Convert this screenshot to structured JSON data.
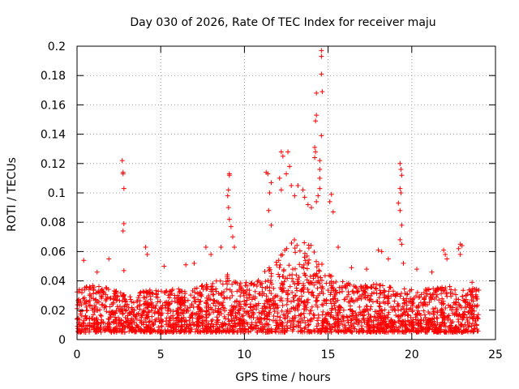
{
  "chart_data": {
    "type": "scatter",
    "title": "Day 030 of 2026, Rate Of TEC Index for receiver maju",
    "xlabel": "GPS time / hours",
    "ylabel": "ROTI / TECUs",
    "xlim": [
      0,
      25
    ],
    "ylim": [
      0,
      0.2
    ],
    "x_ticks": [
      0,
      5,
      10,
      15,
      20,
      25
    ],
    "y_ticks": [
      0,
      0.02,
      0.04,
      0.06,
      0.08,
      0.1,
      0.12,
      0.14,
      0.16,
      0.18,
      0.2
    ],
    "x_tick_labels": [
      "0",
      "5",
      "10",
      "15",
      "20",
      "25"
    ],
    "y_tick_labels": [
      "0",
      "0.02",
      "0.04",
      "0.06",
      "0.08",
      "0.1",
      "0.12",
      "0.14",
      "0.16",
      "0.18",
      "0.2"
    ],
    "grid": true,
    "marker": "+",
    "series": [
      {
        "name": "ROTI",
        "color": "#ff0000",
        "data_range_hours": [
          0,
          24
        ],
        "baseline_band": [
          0.005,
          0.035
        ],
        "envelope": [
          [
            0,
            0.035
          ],
          [
            1,
            0.038
          ],
          [
            2,
            0.035
          ],
          [
            3,
            0.03
          ],
          [
            4,
            0.035
          ],
          [
            5,
            0.033
          ],
          [
            6,
            0.035
          ],
          [
            7,
            0.035
          ],
          [
            8,
            0.04
          ],
          [
            9,
            0.045
          ],
          [
            10,
            0.04
          ],
          [
            11,
            0.045
          ],
          [
            12,
            0.055
          ],
          [
            13,
            0.07
          ],
          [
            14,
            0.065
          ],
          [
            15,
            0.045
          ],
          [
            16,
            0.04
          ],
          [
            17,
            0.038
          ],
          [
            18,
            0.038
          ],
          [
            19,
            0.035
          ],
          [
            20,
            0.035
          ],
          [
            21,
            0.035
          ],
          [
            22,
            0.038
          ],
          [
            23,
            0.035
          ],
          [
            24,
            0.035
          ]
        ],
        "outliers": [
          [
            0.4,
            0.054
          ],
          [
            1.2,
            0.046
          ],
          [
            1.9,
            0.055
          ],
          [
            2.7,
            0.122
          ],
          [
            2.75,
            0.114
          ],
          [
            2.75,
            0.113
          ],
          [
            2.8,
            0.103
          ],
          [
            2.8,
            0.079
          ],
          [
            2.75,
            0.074
          ],
          [
            2.8,
            0.047
          ],
          [
            4.1,
            0.063
          ],
          [
            4.2,
            0.058
          ],
          [
            5.2,
            0.05
          ],
          [
            6.5,
            0.051
          ],
          [
            7.0,
            0.052
          ],
          [
            7.7,
            0.063
          ],
          [
            8.0,
            0.058
          ],
          [
            8.6,
            0.063
          ],
          [
            9.1,
            0.113
          ],
          [
            9.1,
            0.112
          ],
          [
            9.05,
            0.102
          ],
          [
            9.0,
            0.098
          ],
          [
            9.05,
            0.09
          ],
          [
            9.1,
            0.082
          ],
          [
            9.2,
            0.077
          ],
          [
            9.3,
            0.07
          ],
          [
            9.4,
            0.063
          ],
          [
            11.3,
            0.114
          ],
          [
            11.4,
            0.113
          ],
          [
            11.6,
            0.107
          ],
          [
            11.5,
            0.1
          ],
          [
            11.45,
            0.088
          ],
          [
            11.6,
            0.078
          ],
          [
            12.2,
            0.128
          ],
          [
            12.3,
            0.125
          ],
          [
            12.6,
            0.128
          ],
          [
            12.7,
            0.118
          ],
          [
            12.5,
            0.113
          ],
          [
            12.1,
            0.11
          ],
          [
            12.2,
            0.102
          ],
          [
            12.8,
            0.105
          ],
          [
            13.0,
            0.098
          ],
          [
            13.2,
            0.105
          ],
          [
            13.5,
            0.102
          ],
          [
            13.6,
            0.097
          ],
          [
            13.8,
            0.092
          ],
          [
            14.0,
            0.09
          ],
          [
            14.2,
            0.131
          ],
          [
            14.25,
            0.128
          ],
          [
            14.2,
            0.124
          ],
          [
            14.3,
            0.153
          ],
          [
            14.25,
            0.149
          ],
          [
            14.3,
            0.168
          ],
          [
            14.6,
            0.197
          ],
          [
            14.6,
            0.193
          ],
          [
            14.6,
            0.181
          ],
          [
            14.65,
            0.169
          ],
          [
            14.6,
            0.139
          ],
          [
            14.5,
            0.122
          ],
          [
            14.5,
            0.116
          ],
          [
            14.5,
            0.11
          ],
          [
            14.5,
            0.103
          ],
          [
            14.4,
            0.098
          ],
          [
            14.3,
            0.094
          ],
          [
            15.2,
            0.099
          ],
          [
            15.1,
            0.094
          ],
          [
            15.3,
            0.087
          ],
          [
            15.6,
            0.063
          ],
          [
            16.4,
            0.049
          ],
          [
            17.3,
            0.048
          ],
          [
            18.0,
            0.061
          ],
          [
            18.2,
            0.06
          ],
          [
            18.6,
            0.055
          ],
          [
            19.3,
            0.12
          ],
          [
            19.35,
            0.116
          ],
          [
            19.4,
            0.112
          ],
          [
            19.3,
            0.103
          ],
          [
            19.35,
            0.1
          ],
          [
            19.2,
            0.093
          ],
          [
            19.3,
            0.088
          ],
          [
            19.4,
            0.078
          ],
          [
            19.3,
            0.068
          ],
          [
            19.4,
            0.065
          ],
          [
            19.5,
            0.052
          ],
          [
            20.3,
            0.048
          ],
          [
            21.2,
            0.046
          ],
          [
            21.9,
            0.061
          ],
          [
            22.0,
            0.058
          ],
          [
            22.1,
            0.055
          ],
          [
            22.9,
            0.065
          ],
          [
            23.0,
            0.064
          ],
          [
            22.8,
            0.062
          ],
          [
            22.9,
            0.058
          ],
          [
            23.6,
            0.039
          ]
        ]
      }
    ]
  }
}
